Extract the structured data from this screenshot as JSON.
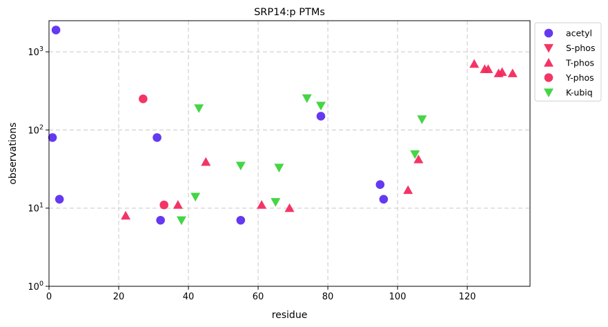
{
  "chart_data": {
    "type": "scatter",
    "title": "SRP14:p PTMs",
    "xlabel": "residue",
    "ylabel": "observations",
    "xlim": [
      0,
      138
    ],
    "ylim": [
      1,
      2500
    ],
    "yscale": "log",
    "grid": true,
    "legend_position": "outside-top-right",
    "x_ticks": [
      0,
      20,
      40,
      60,
      80,
      100,
      120
    ],
    "y_ticks": [
      {
        "value": 1,
        "base": "10",
        "exp": "0"
      },
      {
        "value": 10,
        "base": "10",
        "exp": "1"
      },
      {
        "value": 100,
        "base": "10",
        "exp": "2"
      },
      {
        "value": 1000,
        "base": "10",
        "exp": "3"
      }
    ],
    "series": [
      {
        "name": "acetyl",
        "marker": "circle",
        "color": "#5c2ef0",
        "points": [
          [
            1,
            80
          ],
          [
            2,
            1900
          ],
          [
            3,
            13
          ],
          [
            31,
            80
          ],
          [
            32,
            7
          ],
          [
            55,
            7
          ],
          [
            78,
            150
          ],
          [
            95,
            20
          ],
          [
            96,
            13
          ]
        ]
      },
      {
        "name": "S-phos",
        "marker": "triangle-down",
        "color": "#f22a5e",
        "points": []
      },
      {
        "name": "T-phos",
        "marker": "triangle-up",
        "color": "#f22a5e",
        "points": [
          [
            22,
            8
          ],
          [
            37,
            11
          ],
          [
            45,
            39
          ],
          [
            61,
            11
          ],
          [
            69,
            10
          ],
          [
            103,
            17
          ],
          [
            106,
            42
          ],
          [
            122,
            700
          ],
          [
            125,
            600
          ],
          [
            126,
            600
          ],
          [
            129,
            530
          ],
          [
            130,
            550
          ],
          [
            133,
            530
          ]
        ]
      },
      {
        "name": "Y-phos",
        "marker": "circle",
        "color": "#f22a5e",
        "points": [
          [
            27,
            250
          ],
          [
            33,
            11
          ]
        ]
      },
      {
        "name": "K-ubiq",
        "marker": "triangle-down",
        "color": "#3bd33b",
        "points": [
          [
            38,
            7
          ],
          [
            42,
            14
          ],
          [
            43,
            190
          ],
          [
            55,
            35
          ],
          [
            65,
            12
          ],
          [
            66,
            33
          ],
          [
            74,
            255
          ],
          [
            78,
            205
          ],
          [
            105,
            49
          ],
          [
            107,
            137
          ]
        ]
      }
    ]
  }
}
